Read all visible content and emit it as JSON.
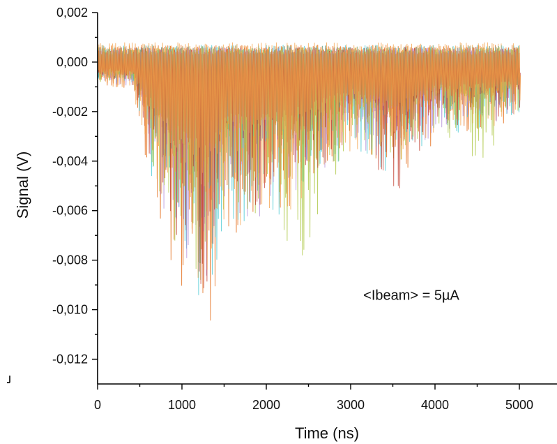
{
  "chart_data": {
    "type": "line",
    "title": "",
    "xlabel": "Time (ns)",
    "ylabel": "Signal (V)",
    "xlim": [
      0,
      5000
    ],
    "ylim": [
      -0.013,
      0.002
    ],
    "grid": false,
    "legend": "none",
    "x_ticks": [
      {
        "value": 0,
        "label": "0"
      },
      {
        "value": 1000,
        "label": "1000"
      },
      {
        "value": 2000,
        "label": "2000"
      },
      {
        "value": 3000,
        "label": "3000"
      },
      {
        "value": 4000,
        "label": "4000"
      },
      {
        "value": 5000,
        "label": "5000"
      }
    ],
    "y_ticks": [
      {
        "value": 0.002,
        "label": "0,002"
      },
      {
        "value": 0.0,
        "label": "0,000"
      },
      {
        "value": -0.002,
        "label": "-0,002"
      },
      {
        "value": -0.004,
        "label": "-0,004"
      },
      {
        "value": -0.006,
        "label": "-0,006"
      },
      {
        "value": -0.008,
        "label": "-0,008"
      },
      {
        "value": -0.01,
        "label": "-0,010"
      },
      {
        "value": -0.012,
        "label": "-0,012"
      }
    ],
    "annotations": [
      {
        "text": "<Ibeam> = 5µA",
        "x": 3150,
        "y": -0.0096
      }
    ],
    "series": [
      {
        "color": "#e8823a",
        "envelope_min": [
          [
            0,
            -0.001
          ],
          [
            400,
            -0.0012
          ],
          [
            600,
            -0.005
          ],
          [
            900,
            -0.0085
          ],
          [
            1300,
            -0.0112
          ],
          [
            1500,
            -0.007
          ],
          [
            2000,
            -0.007
          ],
          [
            2400,
            -0.006
          ],
          [
            3000,
            -0.0038
          ],
          [
            3500,
            -0.005
          ],
          [
            4000,
            -0.0032
          ],
          [
            4500,
            -0.003
          ],
          [
            5000,
            -0.0025
          ]
        ],
        "envelope_max": 0.0007
      },
      {
        "color": "#3ec6d0",
        "envelope_min": [
          [
            0,
            -0.0009
          ],
          [
            400,
            -0.001
          ],
          [
            600,
            -0.0045
          ],
          [
            900,
            -0.008
          ],
          [
            1300,
            -0.011
          ],
          [
            1500,
            -0.0065
          ],
          [
            2000,
            -0.0068
          ],
          [
            2400,
            -0.0055
          ],
          [
            3000,
            -0.0035
          ],
          [
            3500,
            -0.0048
          ],
          [
            4000,
            -0.003
          ],
          [
            4500,
            -0.0028
          ],
          [
            5000,
            -0.0024
          ]
        ],
        "envelope_max": 0.0007
      },
      {
        "color": "#b08ad8",
        "envelope_min": [
          [
            0,
            -0.0008
          ],
          [
            400,
            -0.001
          ],
          [
            600,
            -0.0042
          ],
          [
            900,
            -0.0078
          ],
          [
            1300,
            -0.01
          ],
          [
            1500,
            -0.0062
          ],
          [
            2000,
            -0.0065
          ],
          [
            2400,
            -0.0052
          ],
          [
            3000,
            -0.0033
          ],
          [
            3500,
            -0.0045
          ],
          [
            4000,
            -0.0028
          ],
          [
            4500,
            -0.0026
          ],
          [
            5000,
            -0.0022
          ]
        ],
        "envelope_max": 0.0006
      },
      {
        "color": "#a8c43a",
        "envelope_min": [
          [
            0,
            -0.0008
          ],
          [
            400,
            -0.001
          ],
          [
            600,
            -0.004
          ],
          [
            900,
            -0.0075
          ],
          [
            1300,
            -0.0095
          ],
          [
            1500,
            -0.006
          ],
          [
            2000,
            -0.0062
          ],
          [
            2400,
            -0.0084
          ],
          [
            3000,
            -0.0032
          ],
          [
            3500,
            -0.0044
          ],
          [
            4000,
            -0.0027
          ],
          [
            4500,
            -0.0042
          ],
          [
            5000,
            -0.0022
          ]
        ],
        "envelope_max": 0.0006
      },
      {
        "color": "#c0392b",
        "envelope_min": [
          [
            0,
            -0.0007
          ],
          [
            400,
            -0.0009
          ],
          [
            600,
            -0.004
          ],
          [
            900,
            -0.007
          ],
          [
            1300,
            -0.0098
          ],
          [
            1500,
            -0.0058
          ],
          [
            2000,
            -0.006
          ],
          [
            2400,
            -0.005
          ],
          [
            3000,
            -0.003
          ],
          [
            3500,
            -0.0055
          ],
          [
            4000,
            -0.0026
          ],
          [
            4500,
            -0.0025
          ],
          [
            5000,
            -0.002
          ]
        ],
        "envelope_max": 0.0006
      },
      {
        "color": "#f4a24a",
        "envelope_min": [
          [
            0,
            -0.001
          ],
          [
            400,
            -0.0012
          ],
          [
            600,
            -0.0048
          ],
          [
            900,
            -0.0082
          ],
          [
            1300,
            -0.0105
          ],
          [
            1500,
            -0.0068
          ],
          [
            2000,
            -0.0066
          ],
          [
            2400,
            -0.0058
          ],
          [
            3000,
            -0.0036
          ],
          [
            3500,
            -0.0046
          ],
          [
            4000,
            -0.0031
          ],
          [
            4500,
            -0.0029
          ],
          [
            5000,
            -0.0026
          ]
        ],
        "envelope_max": 0.0008
      }
    ]
  }
}
